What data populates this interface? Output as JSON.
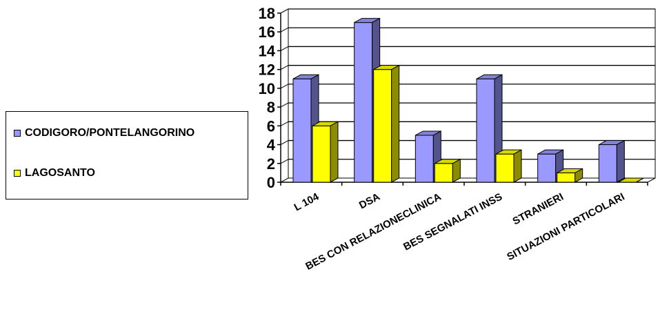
{
  "colors": {
    "series1": "#9999ff",
    "series2": "#ffff00",
    "grid": "#000000",
    "wall": "#ffffff"
  },
  "chart_data": {
    "type": "bar",
    "three_d": true,
    "title": "",
    "xlabel": "",
    "ylabel": "",
    "categories": [
      "L 104",
      "DSA",
      "BES CON RELAZIONECLINICA",
      "BES SEGNALATI INSS",
      "STRANIERI",
      "SITUAZIONI PARTICOLARI"
    ],
    "series": [
      {
        "name": "CODIGORO/PONTELANGORINO",
        "values": [
          11,
          17,
          5,
          11,
          3,
          4
        ]
      },
      {
        "name": "LAGOSANTO",
        "values": [
          6,
          12,
          2,
          3,
          1,
          0
        ]
      }
    ],
    "ylim": [
      0,
      18
    ],
    "yticks": [
      "0",
      "2",
      "4",
      "6",
      "8",
      "10",
      "12",
      "14",
      "16",
      "18"
    ],
    "grid": true,
    "legend_position": "left"
  }
}
